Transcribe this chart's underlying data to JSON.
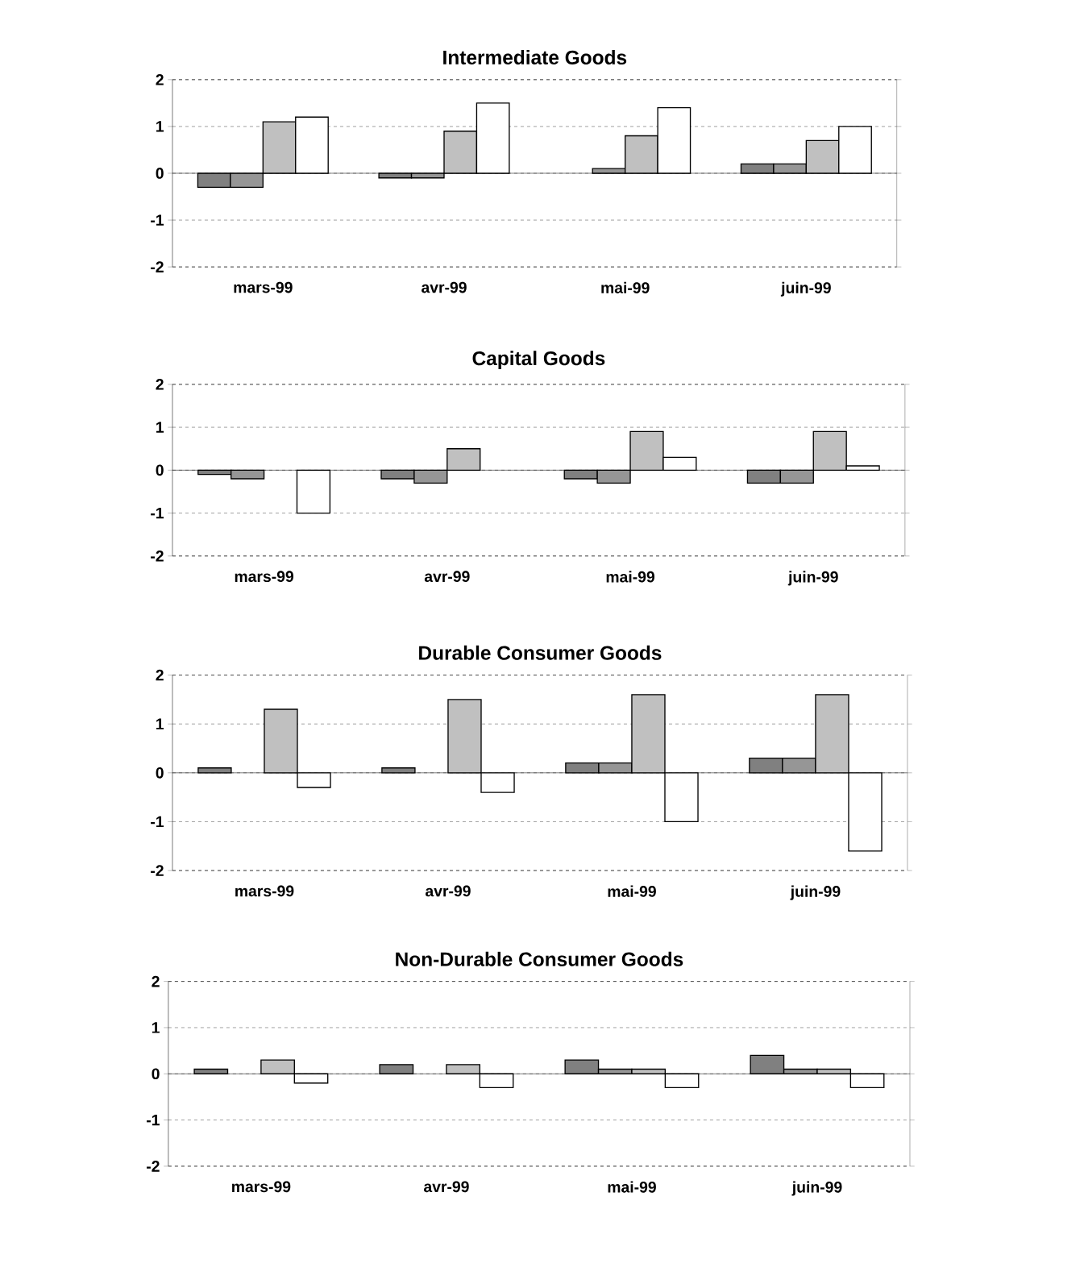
{
  "chart_data": [
    {
      "type": "bar",
      "title": "Intermediate Goods",
      "categories": [
        "mars-99",
        "avr-99",
        "mai-99",
        "juin-99"
      ],
      "ylim": [
        -2,
        2
      ],
      "yticks": [
        -2,
        -1,
        0,
        1,
        2
      ],
      "grid": "y",
      "series": [
        {
          "color": "#808080",
          "values": [
            -0.3,
            -0.1,
            null,
            0.2
          ]
        },
        {
          "color": "#969696",
          "values": [
            -0.3,
            -0.1,
            0.1,
            0.2
          ]
        },
        {
          "color": "#c0c0c0",
          "values": [
            1.1,
            0.9,
            0.8,
            0.7
          ]
        },
        {
          "color": "#ffffff",
          "values": [
            1.2,
            1.5,
            1.4,
            1.0
          ]
        }
      ]
    },
    {
      "type": "bar",
      "title": "Capital Goods",
      "categories": [
        "mars-99",
        "avr-99",
        "mai-99",
        "juin-99"
      ],
      "ylim": [
        -2,
        2
      ],
      "yticks": [
        -2,
        -1,
        0,
        1,
        2
      ],
      "grid": "y",
      "series": [
        {
          "color": "#808080",
          "values": [
            -0.1,
            -0.2,
            -0.2,
            -0.3
          ]
        },
        {
          "color": "#969696",
          "values": [
            -0.2,
            -0.3,
            -0.3,
            -0.3
          ]
        },
        {
          "color": "#c0c0c0",
          "values": [
            null,
            0.5,
            0.9,
            0.9
          ]
        },
        {
          "color": "#ffffff",
          "values": [
            -1.0,
            null,
            0.3,
            0.1
          ]
        }
      ]
    },
    {
      "type": "bar",
      "title": "Durable Consumer Goods",
      "categories": [
        "mars-99",
        "avr-99",
        "mai-99",
        "juin-99"
      ],
      "ylim": [
        -2,
        2
      ],
      "yticks": [
        -2,
        -1,
        0,
        1,
        2
      ],
      "grid": "y",
      "series": [
        {
          "color": "#808080",
          "values": [
            0.1,
            0.1,
            0.2,
            0.3
          ]
        },
        {
          "color": "#969696",
          "values": [
            null,
            null,
            0.2,
            0.3
          ]
        },
        {
          "color": "#c0c0c0",
          "values": [
            1.3,
            1.5,
            1.6,
            1.6
          ]
        },
        {
          "color": "#ffffff",
          "values": [
            -0.3,
            -0.4,
            -1.0,
            -1.6
          ]
        }
      ]
    },
    {
      "type": "bar",
      "title": "Non-Durable Consumer Goods",
      "categories": [
        "mars-99",
        "avr-99",
        "mai-99",
        "juin-99"
      ],
      "ylim": [
        -2,
        2
      ],
      "yticks": [
        -2,
        -1,
        0,
        1,
        2
      ],
      "grid": "y",
      "series": [
        {
          "color": "#808080",
          "values": [
            0.1,
            0.2,
            0.3,
            0.4
          ]
        },
        {
          "color": "#969696",
          "values": [
            null,
            null,
            0.1,
            0.1
          ]
        },
        {
          "color": "#c0c0c0",
          "values": [
            0.3,
            0.2,
            0.1,
            0.1
          ]
        },
        {
          "color": "#ffffff",
          "values": [
            -0.2,
            -0.3,
            -0.3,
            -0.3
          ]
        }
      ]
    }
  ]
}
